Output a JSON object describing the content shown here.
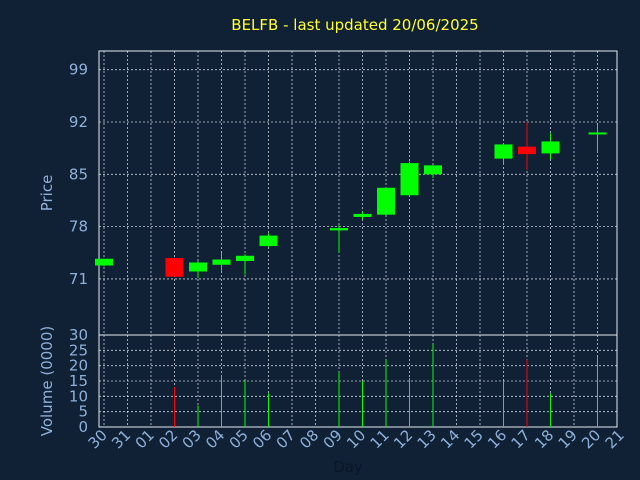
{
  "title": "BELFB - last updated 20/06/2025",
  "colors": {
    "background": "#102136",
    "title": "#ffff33",
    "axis_text": "#8fb0d8",
    "up": "#00ff00",
    "down": "#ff0000",
    "grid": "#e6ecf2"
  },
  "chart_data": [
    {
      "type": "candlestick",
      "title": "BELFB - last updated 20/06/2025",
      "xlabel": "",
      "ylabel": "Price",
      "ylim": [
        63.5,
        101.5
      ],
      "yticks": [
        71,
        78,
        85,
        92,
        99
      ],
      "grid": true,
      "categories": [
        "30",
        "31",
        "01",
        "02",
        "03",
        "04",
        "05",
        "06",
        "07",
        "08",
        "09",
        "10",
        "11",
        "12",
        "13",
        "14",
        "15",
        "16",
        "17",
        "18",
        "19",
        "20",
        "21"
      ],
      "candles": [
        {
          "day": "30",
          "open": 72.8,
          "high": 73.7,
          "low": 72.7,
          "close": 73.7
        },
        {
          "day": "02",
          "open": 73.8,
          "high": 73.8,
          "low": 71.3,
          "close": 71.3
        },
        {
          "day": "03",
          "open": 72.0,
          "high": 73.4,
          "low": 71.1,
          "close": 73.2
        },
        {
          "day": "04",
          "open": 72.9,
          "high": 74.5,
          "low": 72.1,
          "close": 73.6
        },
        {
          "day": "05",
          "open": 73.4,
          "high": 74.3,
          "low": 71.6,
          "close": 74.1
        },
        {
          "day": "06",
          "open": 75.4,
          "high": 77.1,
          "low": 75.3,
          "close": 76.8
        },
        {
          "day": "09",
          "open": 77.5,
          "high": 78.2,
          "low": 74.5,
          "close": 77.8
        },
        {
          "day": "10",
          "open": 79.3,
          "high": 80.0,
          "low": 79.0,
          "close": 79.7
        },
        {
          "day": "11",
          "open": 79.6,
          "high": 83.2,
          "low": 79.5,
          "close": 83.2
        },
        {
          "day": "12",
          "open": 82.2,
          "high": 86.7,
          "low": 82.1,
          "close": 86.5
        },
        {
          "day": "13",
          "open": 85.0,
          "high": 86.2,
          "low": 84.5,
          "close": 86.2
        },
        {
          "day": "16",
          "open": 87.1,
          "high": 89.1,
          "low": 86.3,
          "close": 89.0
        },
        {
          "day": "17",
          "open": 88.7,
          "high": 92.0,
          "low": 85.6,
          "close": 87.7
        },
        {
          "day": "18",
          "open": 87.8,
          "high": 90.5,
          "low": 87.0,
          "close": 89.4
        },
        {
          "day": "20",
          "open": 90.6,
          "high": 91.6,
          "low": 88.0,
          "close": 90.6
        }
      ]
    },
    {
      "type": "bar",
      "title": "",
      "xlabel": "Day",
      "ylabel": "Volume (0000)",
      "ylim": [
        0,
        30
      ],
      "yticks": [
        0,
        5,
        10,
        15,
        20,
        25,
        30
      ],
      "grid": true,
      "categories": [
        "30",
        "31",
        "01",
        "02",
        "03",
        "04",
        "05",
        "06",
        "07",
        "08",
        "09",
        "10",
        "11",
        "12",
        "13",
        "14",
        "15",
        "16",
        "17",
        "18",
        "19",
        "20",
        "21"
      ],
      "volumes": [
        {
          "day": "02",
          "value": 13,
          "direction": "down"
        },
        {
          "day": "03",
          "value": 7,
          "direction": "up"
        },
        {
          "day": "04",
          "value": 17,
          "direction": "up"
        },
        {
          "day": "05",
          "value": 15,
          "direction": "up"
        },
        {
          "day": "06",
          "value": 11,
          "direction": "up"
        },
        {
          "day": "09",
          "value": 18,
          "direction": "up"
        },
        {
          "day": "10",
          "value": 15,
          "direction": "up"
        },
        {
          "day": "11",
          "value": 22,
          "direction": "up"
        },
        {
          "day": "12",
          "value": 16,
          "direction": "up"
        },
        {
          "day": "13",
          "value": 27,
          "direction": "up"
        },
        {
          "day": "16",
          "value": 15,
          "direction": "up"
        },
        {
          "day": "17",
          "value": 22,
          "direction": "down"
        },
        {
          "day": "18",
          "value": 11,
          "direction": "up"
        },
        {
          "day": "20",
          "value": 23,
          "direction": "up"
        }
      ]
    }
  ]
}
